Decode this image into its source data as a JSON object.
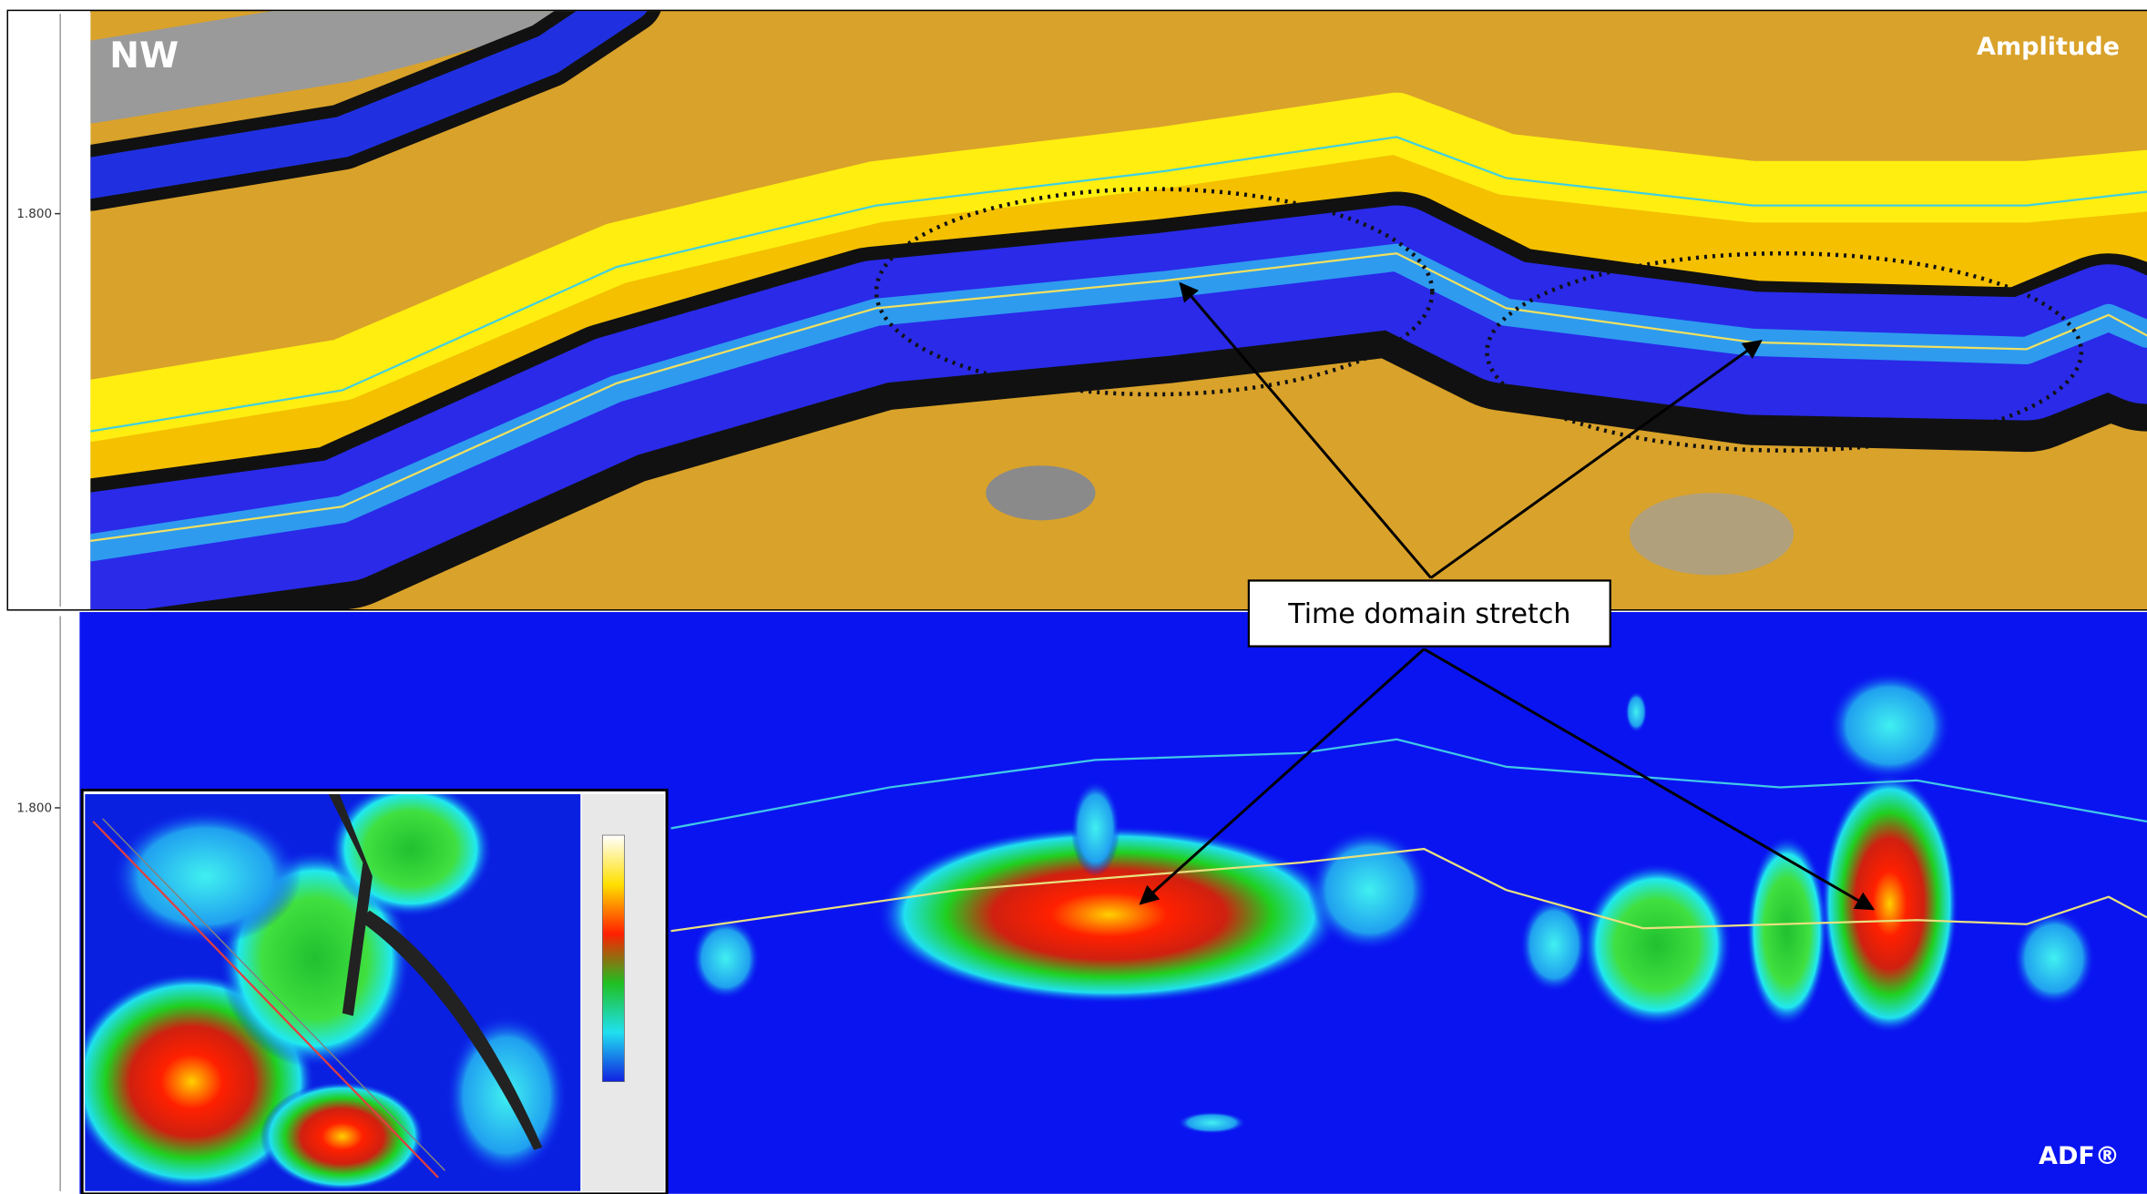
{
  "panels": {
    "top": {
      "label_left": "NW",
      "label_right": "Amplitude",
      "axis_label": "1.800"
    },
    "bottom": {
      "label_right": "ADF®",
      "axis_label": "1.800"
    }
  },
  "annotation": "Time domain stretch"
}
